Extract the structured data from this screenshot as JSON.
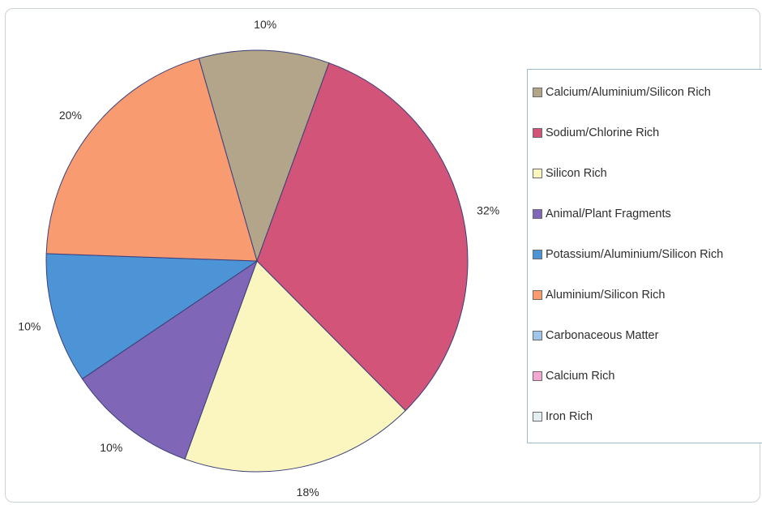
{
  "chart_data": {
    "type": "pie",
    "title": "",
    "slices": [
      {
        "label": "Calcium/Aluminium/Silicon Rich",
        "value": 10,
        "display": "10%",
        "color": "#b2a58a"
      },
      {
        "label": "Sodium/Chlorine Rich",
        "value": 32,
        "display": "32%",
        "color": "#d25478"
      },
      {
        "label": "Silicon Rich",
        "value": 18,
        "display": "18%",
        "color": "#fbf6bf"
      },
      {
        "label": "Animal/Plant Fragments",
        "value": 10,
        "display": "10%",
        "color": "#7f66b6"
      },
      {
        "label": "Potassium/Aluminium/Silicon Rich",
        "value": 10,
        "display": "10%",
        "color": "#4d94d6"
      },
      {
        "label": "Aluminium/Silicon Rich",
        "value": 20,
        "display": "20%",
        "color": "#f99b71"
      },
      {
        "label": "Carbonaceous Matter",
        "value": 0,
        "display": "",
        "color": "#9ec6ea"
      },
      {
        "label": "Calcium Rich",
        "value": 0,
        "display": "",
        "color": "#f2a8d0"
      },
      {
        "label": "Iron Rich",
        "value": 0,
        "display": "",
        "color": "#e3eef3"
      }
    ],
    "legend_position": "right"
  }
}
